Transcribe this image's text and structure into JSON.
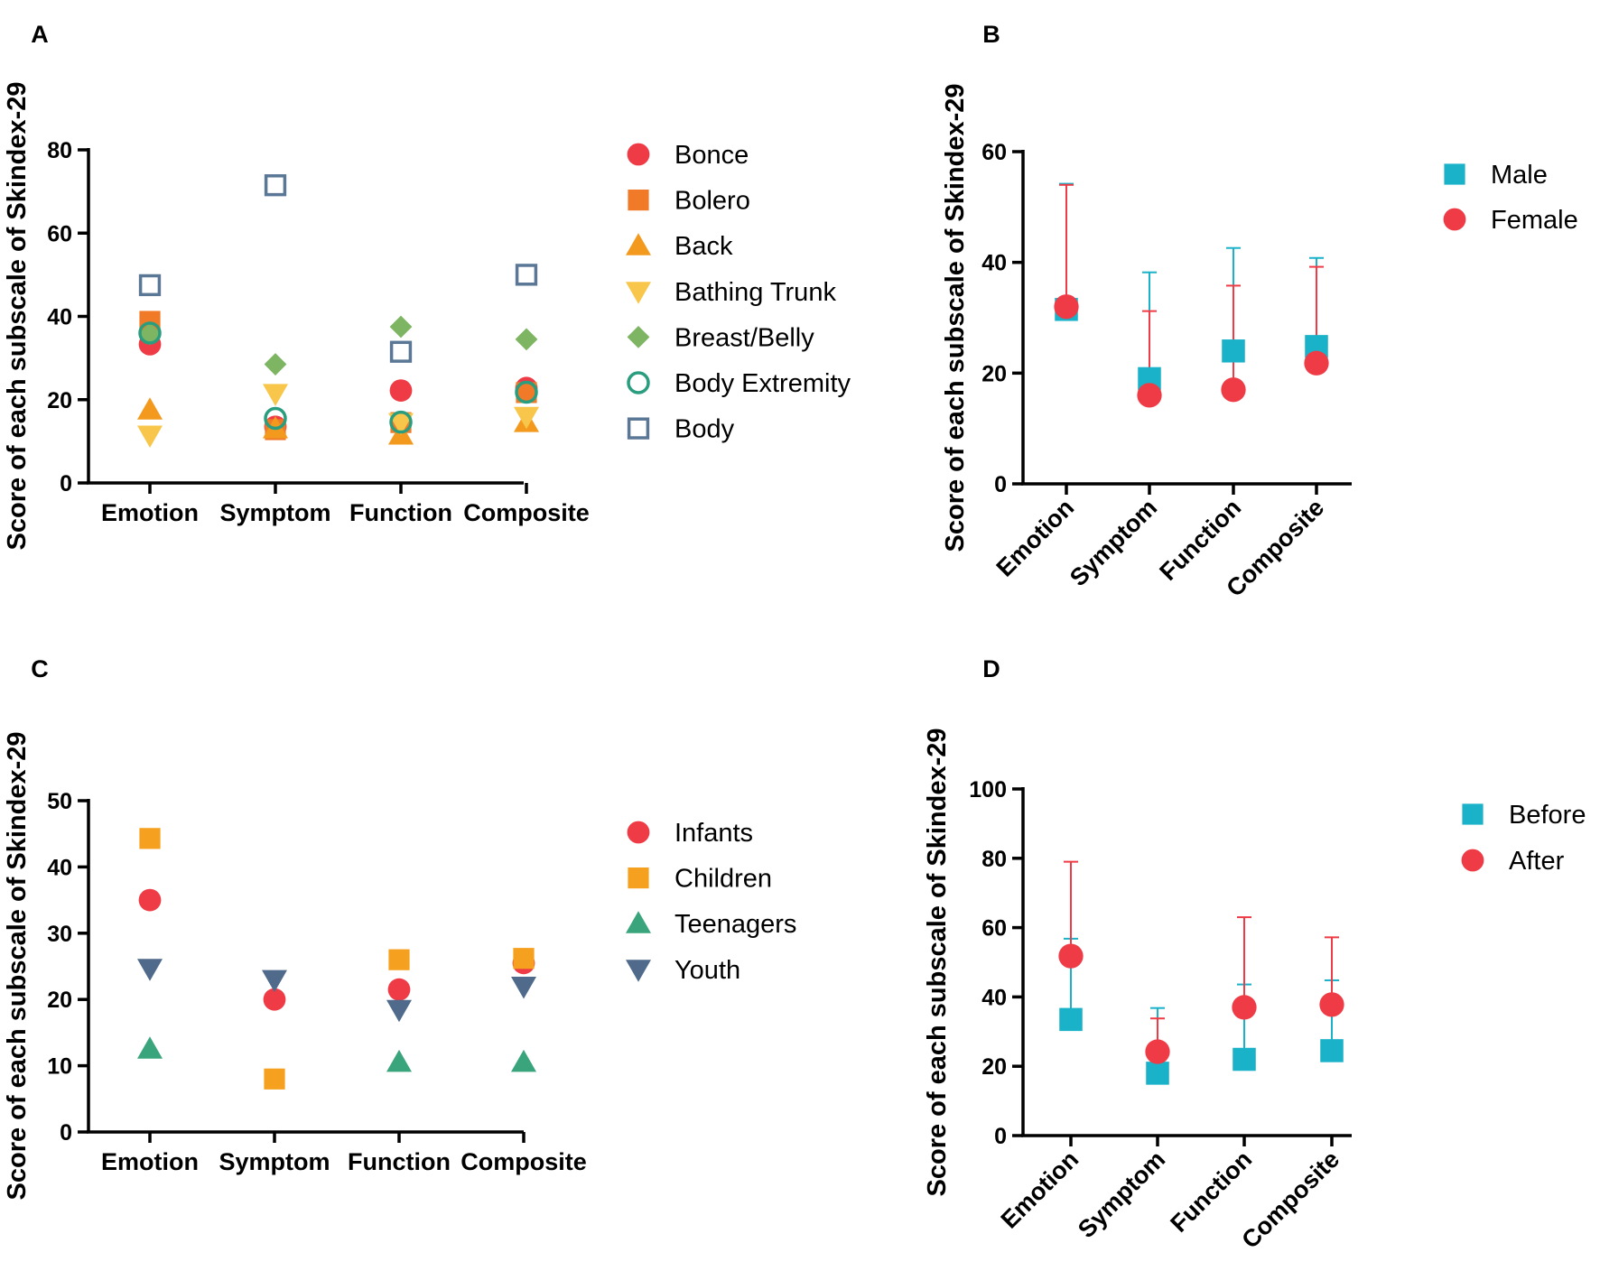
{
  "colors": {
    "red": "#ef3b45",
    "orange": "#f07a28",
    "amber": "#f39a1e",
    "yellow": "#f8c64a",
    "green": "#7eb563",
    "teal": "#2a9d7f",
    "slate": "#5a7796",
    "cyan": "#19b2c8",
    "children_orange": "#f5a01f",
    "teen_green": "#3aa57c",
    "youth_navy": "#4f6a8a"
  },
  "chart_data": [
    {
      "panel": "A",
      "type": "scatter",
      "ylabel": "Score of each subscale of Skindex-29",
      "ylim": [
        0,
        80
      ],
      "yticks": [
        0,
        20,
        40,
        60,
        80
      ],
      "categories": [
        "Emotion",
        "Symptom",
        "Function",
        "Composite"
      ],
      "rotate_categories": false,
      "legend_position": "right",
      "series": [
        {
          "name": "Bonce",
          "marker": "circle",
          "fill": true,
          "color": "#ef3b45",
          "values": [
            33.3,
            13.5,
            22.2,
            22.8
          ]
        },
        {
          "name": "Bolero",
          "marker": "square",
          "fill": true,
          "color": "#f07a28",
          "values": [
            38.8,
            12.8,
            14.5,
            21.7
          ]
        },
        {
          "name": "Back",
          "marker": "triangle-up",
          "fill": true,
          "color": "#f39a1e",
          "values": [
            17.5,
            13.0,
            11.5,
            14.5
          ]
        },
        {
          "name": "Bathing Trunk",
          "marker": "triangle-down",
          "fill": true,
          "color": "#f8c64a",
          "values": [
            11.5,
            21.5,
            14.5,
            16.0
          ]
        },
        {
          "name": "Breast/Belly",
          "marker": "diamond",
          "fill": true,
          "color": "#7eb563",
          "values": [
            35.8,
            28.5,
            37.5,
            34.5
          ]
        },
        {
          "name": "Body Extremity",
          "marker": "circle",
          "fill": false,
          "color": "#2a9d7f",
          "values": [
            36.0,
            15.5,
            14.6,
            21.8
          ]
        },
        {
          "name": "Body",
          "marker": "square",
          "fill": false,
          "color": "#5a7796",
          "values": [
            47.5,
            71.5,
            31.5,
            50.0
          ]
        }
      ]
    },
    {
      "panel": "B",
      "type": "scatter",
      "ylabel": "Score of each subscale of Skindex-29",
      "ylim": [
        0,
        60
      ],
      "yticks": [
        0,
        20,
        40,
        60
      ],
      "categories": [
        "Emotion",
        "Symptom",
        "Function",
        "Composite"
      ],
      "rotate_categories": true,
      "legend_position": "right",
      "series": [
        {
          "name": "Male",
          "marker": "square",
          "fill": true,
          "color": "#19b2c8",
          "values": [
            31.5,
            19.0,
            24.0,
            24.8
          ],
          "error_upper": [
            54.2,
            38.2,
            42.6,
            40.8
          ]
        },
        {
          "name": "Female",
          "marker": "circle",
          "fill": true,
          "color": "#ef3b45",
          "values": [
            32.0,
            16.0,
            17.0,
            21.8
          ],
          "error_upper": [
            54.0,
            31.2,
            35.8,
            39.2
          ]
        }
      ]
    },
    {
      "panel": "C",
      "type": "scatter",
      "ylabel": "Score of each subscale of Skindex-29",
      "ylim": [
        0,
        50
      ],
      "yticks": [
        0,
        10,
        20,
        30,
        40,
        50
      ],
      "categories": [
        "Emotion",
        "Symptom",
        "Function",
        "Composite"
      ],
      "rotate_categories": false,
      "legend_position": "right",
      "series": [
        {
          "name": "Infants",
          "marker": "circle",
          "fill": true,
          "color": "#ef3b45",
          "values": [
            35.0,
            20.0,
            21.5,
            25.5
          ]
        },
        {
          "name": "Children",
          "marker": "square",
          "fill": true,
          "color": "#f5a01f",
          "values": [
            44.3,
            8.0,
            26.0,
            26.2
          ]
        },
        {
          "name": "Teenagers",
          "marker": "triangle-up",
          "fill": true,
          "color": "#3aa57c",
          "values": [
            12.5,
            null,
            10.5,
            10.5
          ]
        },
        {
          "name": "Youth",
          "marker": "triangle-down",
          "fill": true,
          "color": "#4f6a8a",
          "values": [
            24.7,
            23.0,
            18.5,
            22.0
          ]
        }
      ]
    },
    {
      "panel": "D",
      "type": "scatter",
      "ylabel": "Score of each subscale of Skindex-29",
      "ylim": [
        0,
        100
      ],
      "yticks": [
        0,
        20,
        40,
        60,
        80,
        100
      ],
      "categories": [
        "Emotion",
        "Symptom",
        "Function",
        "Composite"
      ],
      "rotate_categories": true,
      "legend_position": "right",
      "series": [
        {
          "name": "Before",
          "marker": "square",
          "fill": true,
          "color": "#19b2c8",
          "values": [
            33.5,
            18.0,
            22.0,
            24.5
          ],
          "error_upper": [
            56.8,
            36.8,
            43.6,
            44.8
          ]
        },
        {
          "name": "After",
          "marker": "circle",
          "fill": true,
          "color": "#ef3b45",
          "values": [
            51.8,
            24.2,
            37.0,
            37.8
          ],
          "error_upper": [
            79.0,
            33.8,
            63.0,
            57.2
          ]
        }
      ]
    }
  ]
}
